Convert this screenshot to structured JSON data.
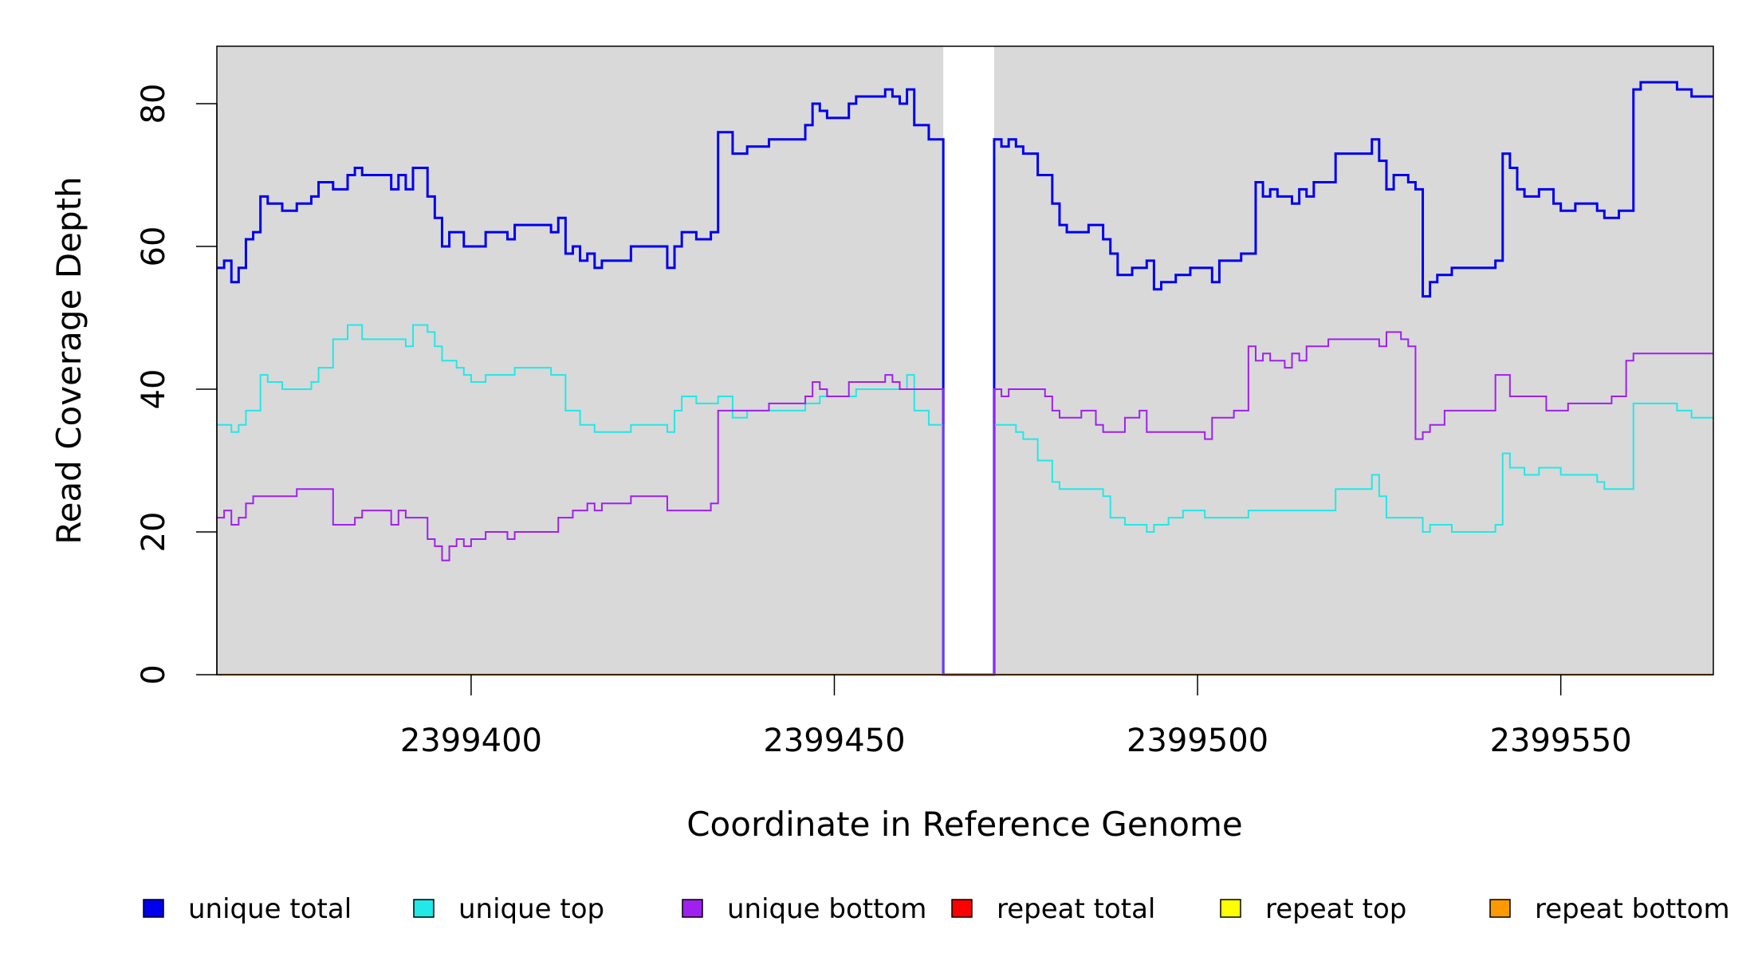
{
  "chart_data": {
    "type": "line",
    "xlabel": "Coordinate in Reference Genome",
    "ylabel": "Read Coverage Depth",
    "xlim": [
      2399365,
      2399571
    ],
    "ylim": [
      0,
      88
    ],
    "x_ticks": [
      2399400,
      2399450,
      2399500,
      2399550
    ],
    "y_ticks": [
      0,
      20,
      40,
      60,
      80
    ],
    "background": "#d9d9d9",
    "gap": {
      "x": [
        2399465,
        2399472
      ]
    },
    "legend_position": "bottom",
    "series": [
      {
        "name": "unique total",
        "color": "#0000ee",
        "points": [
          [
            2399365,
            57
          ],
          [
            2399366,
            58
          ],
          [
            2399367,
            55
          ],
          [
            2399368,
            57
          ],
          [
            2399369,
            61
          ],
          [
            2399370,
            62
          ],
          [
            2399371,
            67
          ],
          [
            2399372,
            66
          ],
          [
            2399374,
            65
          ],
          [
            2399376,
            66
          ],
          [
            2399378,
            67
          ],
          [
            2399379,
            69
          ],
          [
            2399381,
            68
          ],
          [
            2399383,
            70
          ],
          [
            2399384,
            71
          ],
          [
            2399385,
            70
          ],
          [
            2399389,
            68
          ],
          [
            2399390,
            70
          ],
          [
            2399391,
            68
          ],
          [
            2399392,
            71
          ],
          [
            2399394,
            67
          ],
          [
            2399395,
            64
          ],
          [
            2399396,
            60
          ],
          [
            2399397,
            62
          ],
          [
            2399399,
            60
          ],
          [
            2399402,
            62
          ],
          [
            2399405,
            61
          ],
          [
            2399406,
            63
          ],
          [
            2399411,
            62
          ],
          [
            2399412,
            64
          ],
          [
            2399413,
            59
          ],
          [
            2399414,
            60
          ],
          [
            2399415,
            58
          ],
          [
            2399416,
            59
          ],
          [
            2399417,
            57
          ],
          [
            2399418,
            58
          ],
          [
            2399422,
            60
          ],
          [
            2399427,
            57
          ],
          [
            2399428,
            60
          ],
          [
            2399429,
            62
          ],
          [
            2399431,
            61
          ],
          [
            2399433,
            62
          ],
          [
            2399434,
            76
          ],
          [
            2399436,
            73
          ],
          [
            2399438,
            74
          ],
          [
            2399441,
            75
          ],
          [
            2399446,
            77
          ],
          [
            2399447,
            80
          ],
          [
            2399448,
            79
          ],
          [
            2399449,
            78
          ],
          [
            2399452,
            80
          ],
          [
            2399453,
            81
          ],
          [
            2399457,
            82
          ],
          [
            2399458,
            81
          ],
          [
            2399459,
            80
          ],
          [
            2399460,
            82
          ],
          [
            2399461,
            77
          ],
          [
            2399463,
            75
          ],
          [
            2399465,
            0
          ],
          [
            2399472,
            75
          ],
          [
            2399473,
            74
          ],
          [
            2399474,
            75
          ],
          [
            2399475,
            74
          ],
          [
            2399476,
            73
          ],
          [
            2399478,
            70
          ],
          [
            2399480,
            66
          ],
          [
            2399481,
            63
          ],
          [
            2399482,
            62
          ],
          [
            2399485,
            63
          ],
          [
            2399487,
            61
          ],
          [
            2399488,
            59
          ],
          [
            2399489,
            56
          ],
          [
            2399491,
            57
          ],
          [
            2399493,
            58
          ],
          [
            2399494,
            54
          ],
          [
            2399495,
            55
          ],
          [
            2399497,
            56
          ],
          [
            2399499,
            57
          ],
          [
            2399502,
            55
          ],
          [
            2399503,
            58
          ],
          [
            2399506,
            59
          ],
          [
            2399508,
            69
          ],
          [
            2399509,
            67
          ],
          [
            2399510,
            68
          ],
          [
            2399511,
            67
          ],
          [
            2399513,
            66
          ],
          [
            2399514,
            68
          ],
          [
            2399515,
            67
          ],
          [
            2399516,
            69
          ],
          [
            2399519,
            73
          ],
          [
            2399524,
            75
          ],
          [
            2399525,
            72
          ],
          [
            2399526,
            68
          ],
          [
            2399527,
            70
          ],
          [
            2399529,
            69
          ],
          [
            2399530,
            68
          ],
          [
            2399531,
            53
          ],
          [
            2399532,
            55
          ],
          [
            2399533,
            56
          ],
          [
            2399535,
            57
          ],
          [
            2399541,
            58
          ],
          [
            2399542,
            73
          ],
          [
            2399543,
            71
          ],
          [
            2399544,
            68
          ],
          [
            2399545,
            67
          ],
          [
            2399547,
            68
          ],
          [
            2399549,
            66
          ],
          [
            2399550,
            65
          ],
          [
            2399552,
            66
          ],
          [
            2399555,
            65
          ],
          [
            2399556,
            64
          ],
          [
            2399558,
            65
          ],
          [
            2399560,
            82
          ],
          [
            2399561,
            83
          ],
          [
            2399566,
            82
          ],
          [
            2399568,
            81
          ],
          [
            2399571,
            81
          ]
        ]
      },
      {
        "name": "unique top",
        "color": "#22e8e8",
        "points": [
          [
            2399365,
            35
          ],
          [
            2399367,
            34
          ],
          [
            2399368,
            35
          ],
          [
            2399369,
            37
          ],
          [
            2399371,
            42
          ],
          [
            2399372,
            41
          ],
          [
            2399374,
            40
          ],
          [
            2399378,
            41
          ],
          [
            2399379,
            43
          ],
          [
            2399381,
            47
          ],
          [
            2399383,
            49
          ],
          [
            2399385,
            47
          ],
          [
            2399391,
            46
          ],
          [
            2399392,
            49
          ],
          [
            2399394,
            48
          ],
          [
            2399395,
            46
          ],
          [
            2399396,
            44
          ],
          [
            2399398,
            43
          ],
          [
            2399399,
            42
          ],
          [
            2399400,
            41
          ],
          [
            2399402,
            42
          ],
          [
            2399406,
            43
          ],
          [
            2399411,
            42
          ],
          [
            2399413,
            37
          ],
          [
            2399415,
            35
          ],
          [
            2399417,
            34
          ],
          [
            2399422,
            35
          ],
          [
            2399427,
            34
          ],
          [
            2399428,
            37
          ],
          [
            2399429,
            39
          ],
          [
            2399431,
            38
          ],
          [
            2399434,
            39
          ],
          [
            2399436,
            36
          ],
          [
            2399438,
            37
          ],
          [
            2399446,
            38
          ],
          [
            2399448,
            39
          ],
          [
            2399453,
            40
          ],
          [
            2399460,
            42
          ],
          [
            2399461,
            37
          ],
          [
            2399463,
            35
          ],
          [
            2399465,
            0
          ],
          [
            2399472,
            35
          ],
          [
            2399475,
            34
          ],
          [
            2399476,
            33
          ],
          [
            2399478,
            30
          ],
          [
            2399480,
            27
          ],
          [
            2399481,
            26
          ],
          [
            2399487,
            25
          ],
          [
            2399488,
            22
          ],
          [
            2399490,
            21
          ],
          [
            2399493,
            20
          ],
          [
            2399494,
            21
          ],
          [
            2399496,
            22
          ],
          [
            2399498,
            23
          ],
          [
            2399501,
            22
          ],
          [
            2399507,
            23
          ],
          [
            2399519,
            26
          ],
          [
            2399524,
            28
          ],
          [
            2399525,
            25
          ],
          [
            2399526,
            22
          ],
          [
            2399531,
            20
          ],
          [
            2399532,
            21
          ],
          [
            2399535,
            20
          ],
          [
            2399541,
            21
          ],
          [
            2399542,
            31
          ],
          [
            2399543,
            29
          ],
          [
            2399545,
            28
          ],
          [
            2399547,
            29
          ],
          [
            2399550,
            28
          ],
          [
            2399555,
            27
          ],
          [
            2399556,
            26
          ],
          [
            2399560,
            38
          ],
          [
            2399566,
            37
          ],
          [
            2399568,
            36
          ],
          [
            2399571,
            36
          ]
        ]
      },
      {
        "name": "unique bottom",
        "color": "#a020f0",
        "points": [
          [
            2399365,
            22
          ],
          [
            2399366,
            23
          ],
          [
            2399367,
            21
          ],
          [
            2399368,
            22
          ],
          [
            2399369,
            24
          ],
          [
            2399370,
            25
          ],
          [
            2399376,
            26
          ],
          [
            2399381,
            21
          ],
          [
            2399384,
            22
          ],
          [
            2399385,
            23
          ],
          [
            2399389,
            21
          ],
          [
            2399390,
            23
          ],
          [
            2399391,
            22
          ],
          [
            2399394,
            19
          ],
          [
            2399395,
            18
          ],
          [
            2399396,
            16
          ],
          [
            2399397,
            18
          ],
          [
            2399398,
            19
          ],
          [
            2399399,
            18
          ],
          [
            2399400,
            19
          ],
          [
            2399402,
            20
          ],
          [
            2399405,
            19
          ],
          [
            2399406,
            20
          ],
          [
            2399412,
            22
          ],
          [
            2399414,
            23
          ],
          [
            2399416,
            24
          ],
          [
            2399417,
            23
          ],
          [
            2399418,
            24
          ],
          [
            2399422,
            25
          ],
          [
            2399427,
            23
          ],
          [
            2399433,
            24
          ],
          [
            2399434,
            37
          ],
          [
            2399441,
            38
          ],
          [
            2399446,
            39
          ],
          [
            2399447,
            41
          ],
          [
            2399448,
            40
          ],
          [
            2399449,
            39
          ],
          [
            2399452,
            41
          ],
          [
            2399457,
            42
          ],
          [
            2399458,
            41
          ],
          [
            2399459,
            40
          ],
          [
            2399465,
            0
          ],
          [
            2399472,
            40
          ],
          [
            2399473,
            39
          ],
          [
            2399474,
            40
          ],
          [
            2399479,
            39
          ],
          [
            2399480,
            37
          ],
          [
            2399481,
            36
          ],
          [
            2399484,
            37
          ],
          [
            2399486,
            35
          ],
          [
            2399487,
            34
          ],
          [
            2399490,
            36
          ],
          [
            2399492,
            37
          ],
          [
            2399493,
            34
          ],
          [
            2399501,
            33
          ],
          [
            2399502,
            36
          ],
          [
            2399505,
            37
          ],
          [
            2399507,
            46
          ],
          [
            2399508,
            44
          ],
          [
            2399509,
            45
          ],
          [
            2399510,
            44
          ],
          [
            2399512,
            43
          ],
          [
            2399513,
            45
          ],
          [
            2399514,
            44
          ],
          [
            2399515,
            46
          ],
          [
            2399518,
            47
          ],
          [
            2399525,
            46
          ],
          [
            2399526,
            48
          ],
          [
            2399528,
            47
          ],
          [
            2399529,
            46
          ],
          [
            2399530,
            33
          ],
          [
            2399531,
            34
          ],
          [
            2399532,
            35
          ],
          [
            2399534,
            37
          ],
          [
            2399541,
            42
          ],
          [
            2399543,
            39
          ],
          [
            2399548,
            37
          ],
          [
            2399551,
            38
          ],
          [
            2399557,
            39
          ],
          [
            2399559,
            44
          ],
          [
            2399560,
            45
          ],
          [
            2399571,
            45
          ]
        ]
      },
      {
        "name": "repeat total",
        "color": "#ff0000",
        "points": [
          [
            2399365,
            0
          ],
          [
            2399571,
            0
          ]
        ]
      },
      {
        "name": "repeat top",
        "color": "#ffff00",
        "points": [
          [
            2399365,
            0
          ],
          [
            2399571,
            0
          ]
        ]
      },
      {
        "name": "repeat bottom",
        "color": "#ff9900",
        "points": [
          [
            2399365,
            0
          ],
          [
            2399571,
            0
          ]
        ]
      }
    ]
  }
}
